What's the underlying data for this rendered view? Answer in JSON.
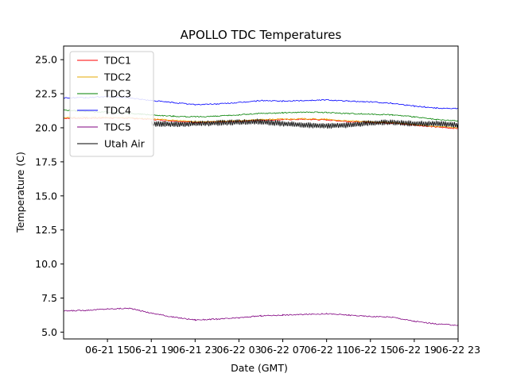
{
  "chart_data": {
    "type": "line",
    "title": "APOLLO TDC Temperatures",
    "xlabel": "Date (GMT)",
    "ylabel": "Temperature (C)",
    "xlim": [
      0,
      36
    ],
    "ylim": [
      4.5,
      26.0
    ],
    "x_ticks": [
      {
        "value": 4,
        "label": "06-21 15"
      },
      {
        "value": 8,
        "label": "06-21 19"
      },
      {
        "value": 12,
        "label": "06-21 23"
      },
      {
        "value": 16,
        "label": "06-22 03"
      },
      {
        "value": 20,
        "label": "06-22 07"
      },
      {
        "value": 24,
        "label": "06-22 11"
      },
      {
        "value": 28,
        "label": "06-22 15"
      },
      {
        "value": 32,
        "label": "06-22 19"
      },
      {
        "value": 36,
        "label": "06-22 23"
      }
    ],
    "y_ticks": [
      {
        "value": 5.0,
        "label": "5.0"
      },
      {
        "value": 7.5,
        "label": "7.5"
      },
      {
        "value": 10.0,
        "label": "10.0"
      },
      {
        "value": 12.5,
        "label": "12.5"
      },
      {
        "value": 15.0,
        "label": "15.0"
      },
      {
        "value": 17.5,
        "label": "17.5"
      },
      {
        "value": 20.0,
        "label": "20.0"
      },
      {
        "value": 22.5,
        "label": "22.5"
      },
      {
        "value": 25.0,
        "label": "25.0"
      }
    ],
    "legend_position": "top-left",
    "grid": false,
    "series": [
      {
        "name": "TDC1",
        "color": "#ff0000",
        "x": [
          0,
          2,
          4,
          6,
          8,
          10,
          12,
          14,
          16,
          18,
          20,
          22,
          24,
          26,
          28,
          30,
          32,
          34,
          36
        ],
        "values": [
          20.7,
          20.7,
          20.72,
          20.7,
          20.62,
          20.5,
          20.4,
          20.42,
          20.48,
          20.55,
          20.6,
          20.62,
          20.58,
          20.45,
          20.4,
          20.35,
          20.2,
          20.05,
          19.95
        ]
      },
      {
        "name": "TDC2",
        "color": "#e6a800",
        "x": [
          0,
          2,
          4,
          6,
          8,
          10,
          12,
          14,
          16,
          18,
          20,
          22,
          24,
          26,
          28,
          30,
          32,
          34,
          36
        ],
        "values": [
          20.75,
          20.75,
          20.76,
          20.74,
          20.66,
          20.55,
          20.45,
          20.46,
          20.52,
          20.6,
          20.64,
          20.66,
          20.62,
          20.5,
          20.44,
          20.38,
          20.24,
          20.1,
          20.0
        ]
      },
      {
        "name": "TDC3",
        "color": "#008000",
        "x": [
          0,
          2,
          4,
          6,
          8,
          10,
          12,
          14,
          16,
          18,
          20,
          22,
          24,
          26,
          28,
          30,
          32,
          34,
          36
        ],
        "values": [
          21.3,
          21.2,
          21.15,
          21.05,
          20.95,
          20.85,
          20.8,
          20.85,
          20.95,
          21.05,
          21.1,
          21.15,
          21.12,
          21.05,
          21.0,
          20.95,
          20.8,
          20.6,
          20.5
        ]
      },
      {
        "name": "TDC4",
        "color": "#0000ff",
        "x": [
          0,
          2,
          4,
          6,
          8,
          10,
          12,
          14,
          16,
          18,
          20,
          22,
          24,
          26,
          28,
          30,
          32,
          34,
          36
        ],
        "values": [
          22.2,
          22.2,
          22.3,
          22.2,
          22.0,
          21.85,
          21.7,
          21.75,
          21.85,
          22.0,
          21.95,
          22.0,
          22.05,
          21.95,
          21.9,
          21.8,
          21.6,
          21.45,
          21.4
        ]
      },
      {
        "name": "TDC5",
        "color": "#800080",
        "x": [
          0,
          2,
          4,
          6,
          8,
          10,
          12,
          14,
          16,
          18,
          20,
          22,
          24,
          26,
          28,
          30,
          32,
          34,
          36
        ],
        "values": [
          6.55,
          6.6,
          6.7,
          6.75,
          6.4,
          6.1,
          5.9,
          5.95,
          6.05,
          6.2,
          6.25,
          6.3,
          6.35,
          6.25,
          6.15,
          6.1,
          5.8,
          5.6,
          5.5
        ]
      },
      {
        "name": "Utah Air",
        "color": "#000000",
        "x": [
          0,
          2,
          4,
          6,
          8,
          10,
          12,
          14,
          16,
          18,
          20,
          22,
          24,
          26,
          28,
          30,
          32,
          34,
          36
        ],
        "values": [
          null,
          null,
          null,
          null,
          20.3,
          20.25,
          20.3,
          20.35,
          20.4,
          20.45,
          20.3,
          20.2,
          20.15,
          20.2,
          20.35,
          20.4,
          20.3,
          20.3,
          20.2
        ]
      }
    ]
  }
}
